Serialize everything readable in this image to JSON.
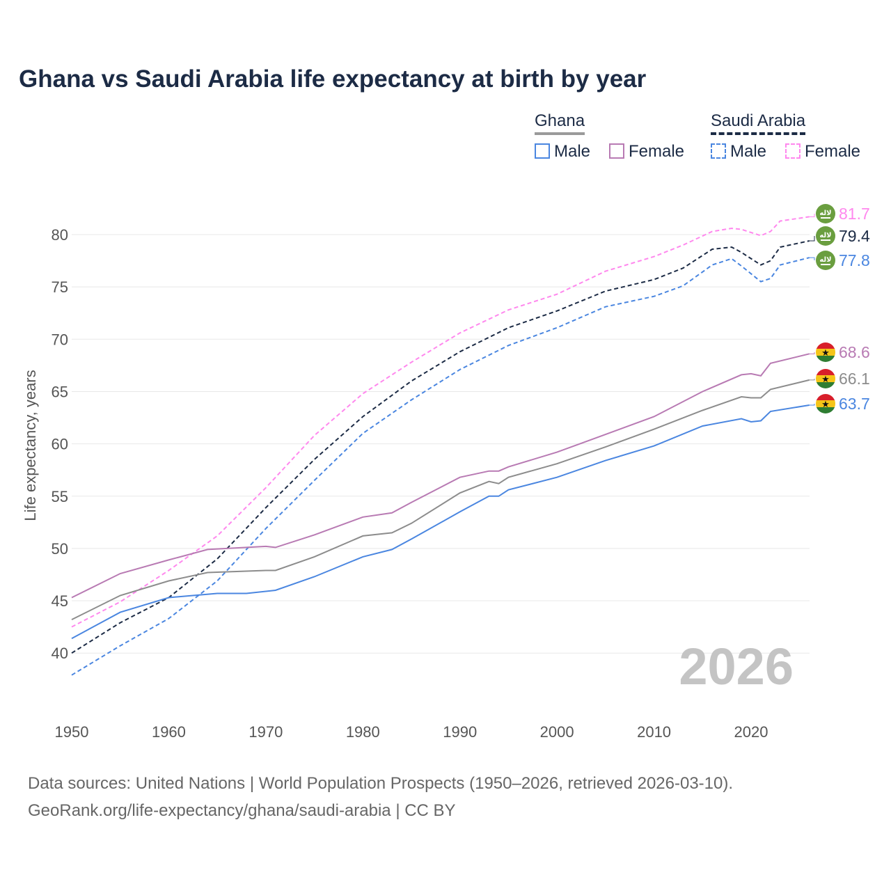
{
  "title": "Ghana vs Saudi Arabia life expectancy at birth by year",
  "legend": {
    "groups": [
      {
        "name": "Ghana",
        "items": [
          "Male",
          "Female"
        ]
      },
      {
        "name": "Saudi Arabia",
        "items": [
          "Male",
          "Female"
        ]
      }
    ]
  },
  "watermark_year": "2026",
  "source": {
    "line1": "Data sources: United Nations | World Population Prospects (1950–2026, retrieved 2026-03-10).",
    "line2": "GeoRank.org/life-expectancy/ghana/saudi-arabia | CC BY"
  },
  "colors": {
    "male": "#4a86e0",
    "female_ghana": "#b87ab3",
    "female_saudi": "#ff88ee",
    "total_ghana": "#8c8c8c",
    "total_saudi": "#1c2b45"
  },
  "chart_data": {
    "type": "line",
    "title": "Ghana vs Saudi Arabia life expectancy at birth by year",
    "xlabel": "",
    "ylabel": "Life expectancy, years",
    "xlim": [
      1950,
      2026
    ],
    "ylim": [
      37,
      84
    ],
    "xticks": [
      "1950",
      "1960",
      "1970",
      "1980",
      "1990",
      "2000",
      "2010",
      "2020"
    ],
    "yticks": [
      "40",
      "45",
      "50",
      "55",
      "60",
      "65",
      "70",
      "75",
      "80"
    ],
    "grid": true,
    "series": [
      {
        "name": "Saudi Arabia Female",
        "country": "Saudi Arabia",
        "dash": true,
        "color": "#ff88ee",
        "end_label": "81.7",
        "x": [
          1950,
          1955,
          1960,
          1965,
          1970,
          1975,
          1980,
          1985,
          1990,
          1995,
          2000,
          2005,
          2010,
          2013,
          2016,
          2018,
          2019,
          2021,
          2022,
          2023,
          2026
        ],
        "y": [
          42.5,
          44.9,
          47.9,
          51.2,
          55.8,
          60.8,
          64.8,
          67.8,
          70.6,
          72.8,
          74.3,
          76.5,
          77.9,
          79.0,
          80.3,
          80.6,
          80.5,
          79.9,
          80.3,
          81.3,
          81.7
        ]
      },
      {
        "name": "Saudi Arabia Total",
        "country": "Saudi Arabia",
        "dash": true,
        "color": "#1c2b45",
        "end_label": "79.4",
        "x": [
          1950,
          1955,
          1960,
          1965,
          1970,
          1975,
          1980,
          1985,
          1990,
          1995,
          2000,
          2005,
          2010,
          2013,
          2016,
          2018,
          2019,
          2021,
          2022,
          2023,
          2026
        ],
        "y": [
          40.0,
          42.9,
          45.3,
          49.0,
          53.9,
          58.5,
          62.6,
          66.0,
          68.8,
          71.1,
          72.7,
          74.6,
          75.7,
          76.8,
          78.6,
          78.8,
          78.3,
          77.1,
          77.5,
          78.8,
          79.4
        ]
      },
      {
        "name": "Saudi Arabia Male",
        "country": "Saudi Arabia",
        "dash": true,
        "color": "#4a86e0",
        "end_label": "77.8",
        "x": [
          1950,
          1955,
          1960,
          1965,
          1970,
          1975,
          1980,
          1985,
          1990,
          1995,
          2000,
          2005,
          2010,
          2013,
          2016,
          2018,
          2019,
          2021,
          2022,
          2023,
          2026
        ],
        "y": [
          37.9,
          40.7,
          43.3,
          46.9,
          51.9,
          56.5,
          61.0,
          64.2,
          67.1,
          69.4,
          71.1,
          73.1,
          74.1,
          75.1,
          77.1,
          77.7,
          77.0,
          75.5,
          75.8,
          77.1,
          77.8
        ]
      },
      {
        "name": "Ghana Female",
        "country": "Ghana",
        "dash": false,
        "color": "#b87ab3",
        "end_label": "68.6",
        "x": [
          1950,
          1955,
          1960,
          1964,
          1970,
          1971,
          1975,
          1980,
          1983,
          1985,
          1990,
          1993,
          1994,
          1995,
          2000,
          2005,
          2010,
          2015,
          2019,
          2020,
          2021,
          2022,
          2026
        ],
        "y": [
          45.3,
          47.6,
          48.9,
          49.9,
          50.2,
          50.1,
          51.3,
          53.0,
          53.4,
          54.4,
          56.8,
          57.4,
          57.4,
          57.8,
          59.2,
          60.9,
          62.6,
          65.0,
          66.6,
          66.7,
          66.5,
          67.7,
          68.6
        ]
      },
      {
        "name": "Ghana Total",
        "country": "Ghana",
        "dash": false,
        "color": "#8c8c8c",
        "end_label": "66.1",
        "x": [
          1950,
          1955,
          1960,
          1964,
          1970,
          1971,
          1975,
          1980,
          1983,
          1985,
          1990,
          1993,
          1994,
          1995,
          2000,
          2005,
          2010,
          2015,
          2019,
          2020,
          2021,
          2022,
          2026
        ],
        "y": [
          43.2,
          45.5,
          46.9,
          47.7,
          47.9,
          47.9,
          49.2,
          51.2,
          51.5,
          52.4,
          55.3,
          56.4,
          56.2,
          56.8,
          58.1,
          59.7,
          61.4,
          63.2,
          64.5,
          64.4,
          64.4,
          65.2,
          66.1
        ]
      },
      {
        "name": "Ghana Male",
        "country": "Ghana",
        "dash": false,
        "color": "#4a86e0",
        "end_label": "63.7",
        "x": [
          1950,
          1955,
          1960,
          1965,
          1968,
          1971,
          1975,
          1980,
          1983,
          1985,
          1990,
          1993,
          1994,
          1995,
          2000,
          2005,
          2010,
          2015,
          2019,
          2020,
          2021,
          2022,
          2026
        ],
        "y": [
          41.4,
          43.9,
          45.3,
          45.7,
          45.7,
          46.0,
          47.3,
          49.2,
          49.9,
          50.9,
          53.5,
          55.0,
          55.0,
          55.6,
          56.8,
          58.4,
          59.8,
          61.7,
          62.4,
          62.1,
          62.2,
          63.1,
          63.7
        ]
      }
    ]
  }
}
